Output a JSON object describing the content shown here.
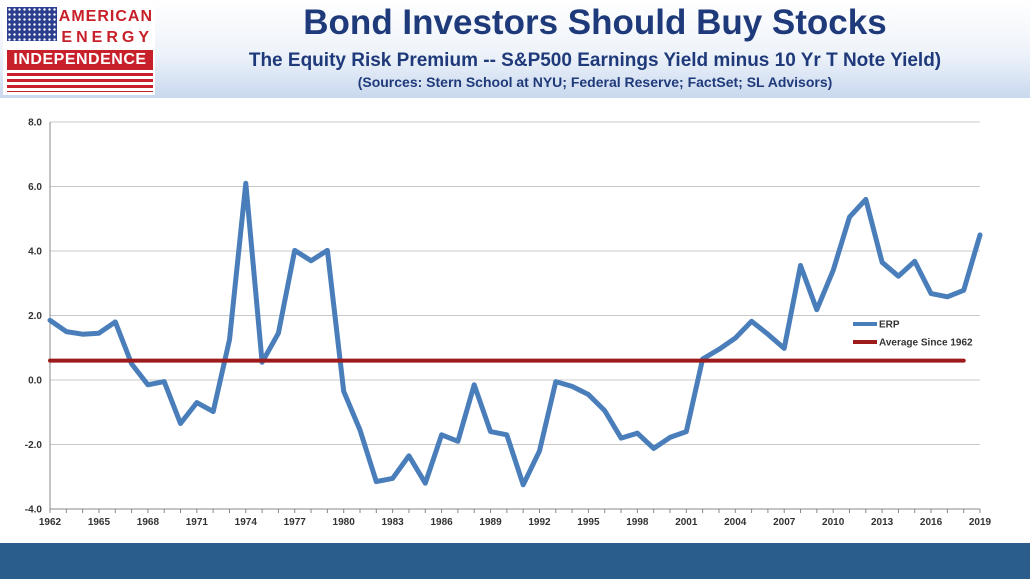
{
  "logo": {
    "line1": "AMERICAN",
    "line2": "ENERGY",
    "line3": "INDEPENDENCE"
  },
  "header": {
    "title": "Bond Investors Should Buy Stocks",
    "subtitle": "The Equity Risk Premium -- S&P500 Earnings Yield minus 10 Yr T Note Yield)",
    "sources": "(Sources: Stern School at NYU; Federal Reserve; FactSet; SL Advisors)"
  },
  "colors": {
    "erp_line": "#4a7ebb",
    "average_line": "#9e1b1b",
    "title_text": "#1f3a7a",
    "footer_band": "#2a5d8c",
    "logo_red": "#c8202a"
  },
  "chart_data": {
    "type": "line",
    "title": "",
    "xlabel": "",
    "ylabel": "",
    "ylim": [
      -4.0,
      8.0
    ],
    "y_ticks": [
      "8.0",
      "6.0",
      "4.0",
      "2.0",
      "0.0",
      "-2.0",
      "-4.0"
    ],
    "x_tick_labels": [
      "1962",
      "1965",
      "1968",
      "1971",
      "1974",
      "1977",
      "1980",
      "1983",
      "1986",
      "1989",
      "1992",
      "1995",
      "1998",
      "2001",
      "2004",
      "2007",
      "2010",
      "2013",
      "2016",
      "2019"
    ],
    "grid": true,
    "legend_position": "right",
    "x": [
      1962,
      1963,
      1964,
      1965,
      1966,
      1967,
      1968,
      1969,
      1970,
      1971,
      1972,
      1973,
      1974,
      1975,
      1976,
      1977,
      1978,
      1979,
      1980,
      1981,
      1982,
      1983,
      1984,
      1985,
      1986,
      1987,
      1988,
      1989,
      1990,
      1991,
      1992,
      1993,
      1994,
      1995,
      1996,
      1997,
      1998,
      1999,
      2000,
      2001,
      2002,
      2003,
      2004,
      2005,
      2006,
      2007,
      2008,
      2009,
      2010,
      2011,
      2012,
      2013,
      2014,
      2015,
      2016,
      2017,
      2018,
      2019
    ],
    "series": [
      {
        "name": "ERP",
        "values": [
          1.85,
          1.5,
          1.42,
          1.45,
          1.8,
          0.5,
          -0.15,
          -0.05,
          -1.35,
          -0.7,
          -0.98,
          1.25,
          6.1,
          0.55,
          1.45,
          4.02,
          3.7,
          4.02,
          -0.35,
          -1.55,
          -3.15,
          -3.05,
          -2.35,
          -3.2,
          -1.7,
          -1.9,
          -0.15,
          -1.6,
          -1.7,
          -3.25,
          -2.2,
          -0.05,
          -0.2,
          -0.45,
          -0.95,
          -1.8,
          -1.65,
          -2.12,
          -1.78,
          -1.6,
          0.65,
          0.95,
          1.3,
          1.82,
          1.42,
          0.98,
          3.55,
          2.18,
          3.4,
          5.05,
          5.6,
          3.65,
          3.22,
          3.68,
          2.68,
          2.58,
          2.78,
          4.5
        ]
      },
      {
        "name": "Average Since 1962",
        "values": [
          0.6,
          0.6,
          0.6,
          0.6,
          0.6,
          0.6,
          0.6,
          0.6,
          0.6,
          0.6,
          0.6,
          0.6,
          0.6,
          0.6,
          0.6,
          0.6,
          0.6,
          0.6,
          0.6,
          0.6,
          0.6,
          0.6,
          0.6,
          0.6,
          0.6,
          0.6,
          0.6,
          0.6,
          0.6,
          0.6,
          0.6,
          0.6,
          0.6,
          0.6,
          0.6,
          0.6,
          0.6,
          0.6,
          0.6,
          0.6,
          0.6,
          0.6,
          0.6,
          0.6,
          0.6,
          0.6,
          0.6,
          0.6,
          0.6,
          0.6,
          0.6,
          0.6,
          0.6,
          0.6,
          0.6,
          0.6,
          0.6,
          0.6
        ]
      }
    ]
  }
}
